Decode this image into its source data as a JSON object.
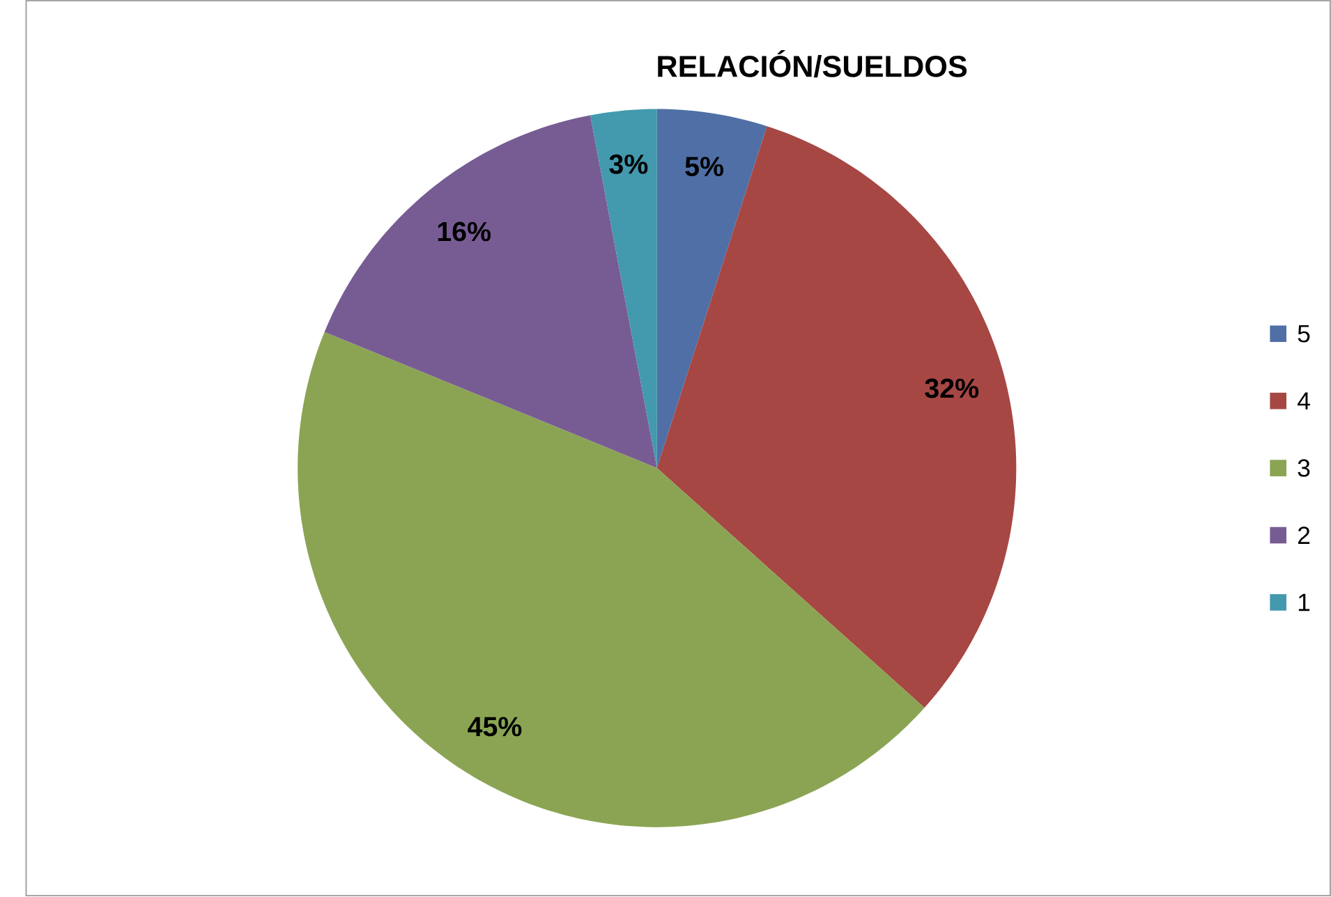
{
  "chart_data": {
    "type": "pie",
    "title": "RELACIÓN/SUELDOS",
    "categories": [
      "5",
      "4",
      "3",
      "2",
      "1"
    ],
    "values": [
      5,
      32,
      45,
      16,
      3
    ],
    "colors": [
      "#4f6fa6",
      "#a64744",
      "#8ba453",
      "#775c94",
      "#4399ad"
    ],
    "value_labels": [
      "5%",
      "32%",
      "45%",
      "16%",
      "3%"
    ],
    "legend": "right"
  }
}
